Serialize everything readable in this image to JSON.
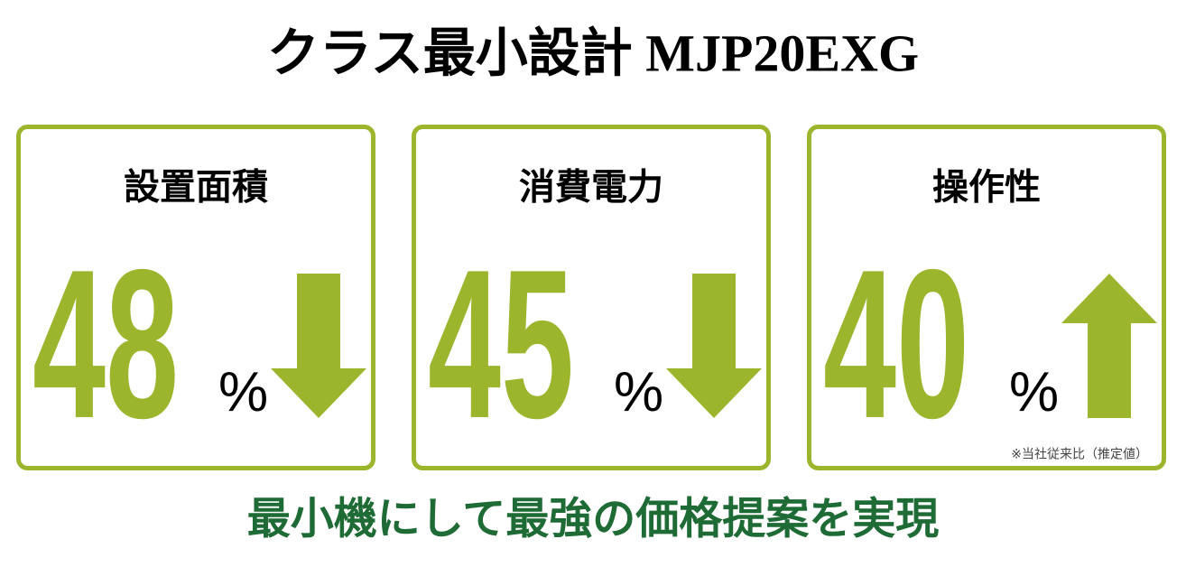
{
  "header": {
    "title": "クラス最小設計 MJP20EXG"
  },
  "cards": [
    {
      "label": "設置面積",
      "value": 48,
      "unit": "%",
      "direction": "down"
    },
    {
      "label": "消費電力",
      "value": 45,
      "unit": "%",
      "direction": "down"
    },
    {
      "label": "操作性",
      "value": 40,
      "unit": "%",
      "direction": "up",
      "note": "※当社従来比（推定値）"
    }
  ],
  "accent_color": "#9bb52d",
  "footer": {
    "text": "最小機にして最強の価格提案を実現",
    "color": "#1e6b35"
  }
}
